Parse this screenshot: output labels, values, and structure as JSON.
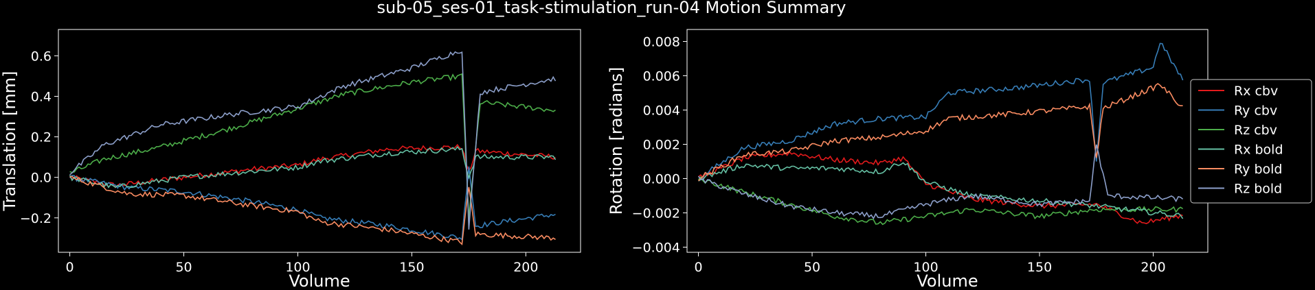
{
  "figure": {
    "title": "sub-05_ses-01_task-stimulation_run-04 Motion Summary"
  },
  "colors": {
    "Rx cbv": "#e41a1c",
    "Ry cbv": "#377eb8",
    "Rz cbv": "#4daf4a",
    "Rx bold": "#66c2a5",
    "Ry bold": "#fc8d62",
    "Rz bold": "#8da0cb"
  },
  "legend": {
    "placement": "right",
    "entries": [
      "Rx cbv",
      "Ry cbv",
      "Rz cbv",
      "Rx bold",
      "Ry bold",
      "Rz bold"
    ]
  },
  "chart_data": [
    {
      "type": "line",
      "xlabel": "Volume",
      "ylabel": "Translation [mm]",
      "xlim": [
        -5,
        224
      ],
      "ylim": [
        -0.37,
        0.73
      ],
      "xticks": [
        0,
        50,
        100,
        150,
        200
      ],
      "yticks": [
        -0.2,
        0.0,
        0.2,
        0.4,
        0.6
      ],
      "ytick_labels": [
        "−0.2",
        "0.0",
        "0.2",
        "0.4",
        "0.6"
      ],
      "grid": false,
      "n_volumes": 214,
      "series": [
        {
          "name": "Rx cbv",
          "points": [
            [
              0,
              0
            ],
            [
              20,
              -0.04
            ],
            [
              50,
              0
            ],
            [
              80,
              0.04
            ],
            [
              100,
              0.06
            ],
            [
              110,
              0.09
            ],
            [
              140,
              0.14
            ],
            [
              172,
              0.15
            ],
            [
              175,
              0.02
            ],
            [
              178,
              0.13
            ],
            [
              214,
              0.1
            ]
          ]
        },
        {
          "name": "Ry cbv",
          "points": [
            [
              0,
              0
            ],
            [
              25,
              -0.05
            ],
            [
              50,
              -0.07
            ],
            [
              80,
              -0.12
            ],
            [
              100,
              -0.16
            ],
            [
              110,
              -0.2
            ],
            [
              140,
              -0.24
            ],
            [
              172,
              -0.3
            ],
            [
              175,
              0.06
            ],
            [
              178,
              -0.24
            ],
            [
              214,
              -0.18
            ]
          ]
        },
        {
          "name": "Rz cbv",
          "points": [
            [
              0,
              0.02
            ],
            [
              15,
              0.09
            ],
            [
              40,
              0.15
            ],
            [
              70,
              0.24
            ],
            [
              100,
              0.34
            ],
            [
              120,
              0.41
            ],
            [
              150,
              0.47
            ],
            [
              172,
              0.5
            ],
            [
              175,
              -0.2
            ],
            [
              180,
              0.37
            ],
            [
              214,
              0.33
            ]
          ]
        },
        {
          "name": "Rx bold",
          "points": [
            [
              0,
              0
            ],
            [
              20,
              -0.05
            ],
            [
              50,
              0
            ],
            [
              80,
              0.03
            ],
            [
              100,
              0.05
            ],
            [
              110,
              0.08
            ],
            [
              140,
              0.12
            ],
            [
              172,
              0.14
            ],
            [
              175,
              0
            ],
            [
              178,
              0.1
            ],
            [
              214,
              0.1
            ]
          ]
        },
        {
          "name": "Ry bold",
          "points": [
            [
              0,
              0
            ],
            [
              25,
              -0.08
            ],
            [
              50,
              -0.09
            ],
            [
              80,
              -0.14
            ],
            [
              100,
              -0.17
            ],
            [
              110,
              -0.22
            ],
            [
              140,
              -0.26
            ],
            [
              172,
              -0.32
            ],
            [
              175,
              -0.05
            ],
            [
              178,
              -0.28
            ],
            [
              214,
              -0.3
            ]
          ]
        },
        {
          "name": "Rz bold",
          "points": [
            [
              0,
              0.02
            ],
            [
              15,
              0.16
            ],
            [
              40,
              0.26
            ],
            [
              70,
              0.31
            ],
            [
              100,
              0.35
            ],
            [
              120,
              0.45
            ],
            [
              150,
              0.54
            ],
            [
              172,
              0.63
            ],
            [
              175,
              -0.25
            ],
            [
              180,
              0.42
            ],
            [
              214,
              0.49
            ]
          ]
        }
      ]
    },
    {
      "type": "line",
      "xlabel": "Volume",
      "ylabel": "Rotation [radians]",
      "xlim": [
        -5,
        224
      ],
      "ylim": [
        -0.0043,
        0.0087
      ],
      "xticks": [
        0,
        50,
        100,
        150,
        200
      ],
      "yticks": [
        -0.004,
        -0.002,
        0.0,
        0.002,
        0.004,
        0.006,
        0.008
      ],
      "ytick_labels": [
        "−0.004",
        "−0.002",
        "0.000",
        "0.002",
        "0.004",
        "0.006",
        "0.008"
      ],
      "grid": false,
      "n_volumes": 214,
      "series": [
        {
          "name": "Rx cbv",
          "points": [
            [
              0,
              0
            ],
            [
              20,
              0.0012
            ],
            [
              40,
              0.0015
            ],
            [
              60,
              0.0011
            ],
            [
              80,
              0.0009
            ],
            [
              90,
              0.0012
            ],
            [
              100,
              -0.0003
            ],
            [
              120,
              -0.0012
            ],
            [
              150,
              -0.0016
            ],
            [
              175,
              -0.0015
            ],
            [
              195,
              -0.0026
            ],
            [
              214,
              -0.0021
            ]
          ]
        },
        {
          "name": "Ry cbv",
          "points": [
            [
              0,
              0
            ],
            [
              20,
              0.0018
            ],
            [
              40,
              0.0022
            ],
            [
              60,
              0.0032
            ],
            [
              80,
              0.0035
            ],
            [
              100,
              0.0036
            ],
            [
              110,
              0.005
            ],
            [
              140,
              0.0053
            ],
            [
              172,
              0.0058
            ],
            [
              175,
              0.001
            ],
            [
              178,
              0.0056
            ],
            [
              200,
              0.0065
            ],
            [
              203,
              0.008
            ],
            [
              214,
              0.0055
            ]
          ]
        },
        {
          "name": "Rz cbv",
          "points": [
            [
              0,
              0
            ],
            [
              20,
              -0.0008
            ],
            [
              40,
              -0.0015
            ],
            [
              60,
              -0.0022
            ],
            [
              80,
              -0.0026
            ],
            [
              100,
              -0.0022
            ],
            [
              120,
              -0.0018
            ],
            [
              150,
              -0.0022
            ],
            [
              175,
              -0.0018
            ],
            [
              214,
              -0.0018
            ]
          ]
        },
        {
          "name": "Rx bold",
          "points": [
            [
              0,
              0
            ],
            [
              20,
              0.0008
            ],
            [
              40,
              0.0006
            ],
            [
              60,
              0.0006
            ],
            [
              80,
              0.0004
            ],
            [
              90,
              0.001
            ],
            [
              100,
              -0.0002
            ],
            [
              120,
              -0.001
            ],
            [
              150,
              -0.0013
            ],
            [
              175,
              -0.0016
            ],
            [
              214,
              -0.0022
            ]
          ]
        },
        {
          "name": "Ry bold",
          "points": [
            [
              0,
              0
            ],
            [
              20,
              0.0014
            ],
            [
              40,
              0.0016
            ],
            [
              60,
              0.0022
            ],
            [
              80,
              0.0024
            ],
            [
              100,
              0.0028
            ],
            [
              110,
              0.0035
            ],
            [
              140,
              0.0038
            ],
            [
              172,
              0.0042
            ],
            [
              175,
              0.0012
            ],
            [
              178,
              0.0041
            ],
            [
              200,
              0.0053
            ],
            [
              203,
              0.0055
            ],
            [
              214,
              0.004
            ]
          ]
        },
        {
          "name": "Rz bold",
          "points": [
            [
              0,
              0
            ],
            [
              20,
              -0.0009
            ],
            [
              40,
              -0.0016
            ],
            [
              60,
              -0.002
            ],
            [
              80,
              -0.0022
            ],
            [
              100,
              -0.0015
            ],
            [
              120,
              -0.001
            ],
            [
              150,
              -0.0015
            ],
            [
              172,
              -0.0013
            ],
            [
              175,
              0.002
            ],
            [
              180,
              -0.001
            ],
            [
              214,
              -0.0012
            ]
          ]
        }
      ]
    }
  ]
}
